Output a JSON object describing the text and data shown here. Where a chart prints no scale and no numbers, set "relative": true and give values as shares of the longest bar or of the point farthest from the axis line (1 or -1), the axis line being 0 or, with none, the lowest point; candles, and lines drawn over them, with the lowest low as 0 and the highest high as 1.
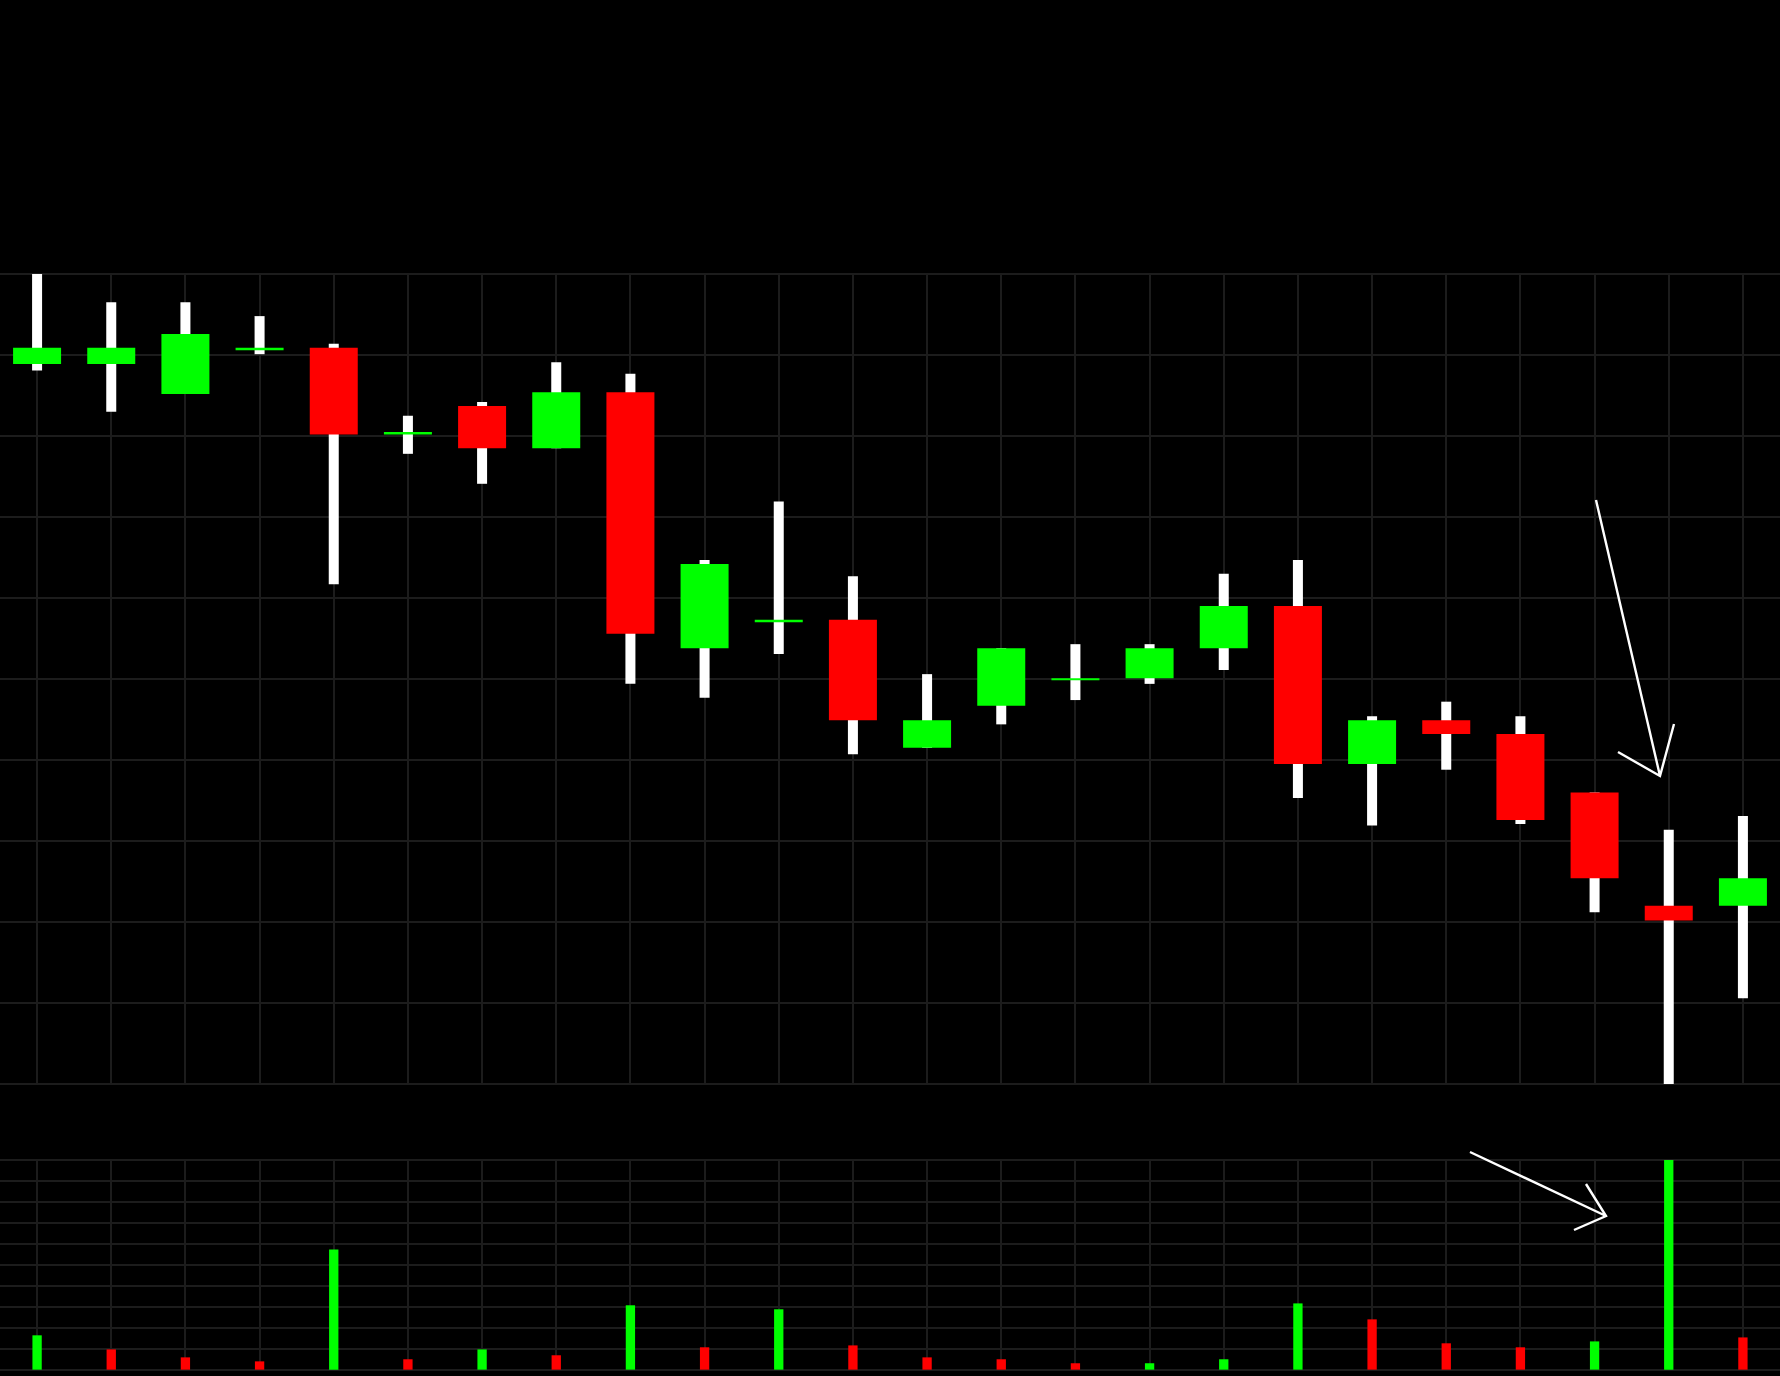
{
  "chart_data": [
    {
      "type": "candlestick",
      "relative": true,
      "grid": true,
      "categories": [
        null,
        null,
        null,
        null,
        null,
        null,
        null,
        null,
        null,
        null,
        null,
        null,
        null,
        null,
        null,
        null,
        null,
        null,
        null,
        null,
        null,
        null,
        null,
        null
      ],
      "ohlc": [
        [
          0.889,
          1,
          0.881,
          0.909
        ],
        [
          0.889,
          0.965,
          0.83,
          0.909
        ],
        [
          0.852,
          0.965,
          0.852,
          0.926
        ],
        [
          0.906,
          0.948,
          0.901,
          0.909
        ],
        [
          0.909,
          0.914,
          0.617,
          0.802
        ],
        [
          0.802,
          0.825,
          0.778,
          0.805
        ],
        [
          0.837,
          0.842,
          0.741,
          0.785
        ],
        [
          0.785,
          0.891,
          0.785,
          0.854
        ],
        [
          0.854,
          0.877,
          0.494,
          0.556
        ],
        [
          0.538,
          0.647,
          0.477,
          0.642
        ],
        [
          0.57,
          0.719,
          0.531,
          0.573
        ],
        [
          0.573,
          0.627,
          0.407,
          0.449
        ],
        [
          0.415,
          0.506,
          0.415,
          0.449
        ],
        [
          0.467,
          0.538,
          0.444,
          0.538
        ],
        [
          0.499,
          0.543,
          0.474,
          0.501
        ],
        [
          0.501,
          0.543,
          0.494,
          0.538
        ],
        [
          0.538,
          0.63,
          0.511,
          0.59
        ],
        [
          0.59,
          0.647,
          0.353,
          0.395
        ],
        [
          0.395,
          0.454,
          0.319,
          0.449
        ],
        [
          0.449,
          0.472,
          0.388,
          0.432
        ],
        [
          0.432,
          0.454,
          0.321,
          0.326
        ],
        [
          0.36,
          0.36,
          0.212,
          0.254
        ],
        [
          0.22,
          0.314,
          0,
          0.202
        ],
        [
          0.22,
          0.331,
          0.106,
          0.254
        ]
      ],
      "colors": [
        "#00ff00",
        "#00ff00",
        "#00ff00",
        "#00ff00",
        "#ff0000",
        "#00ff00",
        "#ff0000",
        "#00ff00",
        "#ff0000",
        "#00ff00",
        "#00ff00",
        "#ff0000",
        "#00ff00",
        "#00ff00",
        "#00ff00",
        "#00ff00",
        "#00ff00",
        "#ff0000",
        "#00ff00",
        "#ff0000",
        "#ff0000",
        "#ff0000",
        "#ff0000",
        "#00ff00"
      ]
    },
    {
      "type": "bar",
      "relative": true,
      "grid": true,
      "categories": [
        null,
        null,
        null,
        null,
        null,
        null,
        null,
        null,
        null,
        null,
        null,
        null,
        null,
        null,
        null,
        null,
        null,
        null,
        null,
        null,
        null,
        null,
        null,
        null
      ],
      "values": [
        0.162,
        0.095,
        0.057,
        0.038,
        0.571,
        0.048,
        0.095,
        0.067,
        0.305,
        0.105,
        0.286,
        0.114,
        0.057,
        0.048,
        0.029,
        0.029,
        0.048,
        0.314,
        0.238,
        0.124,
        0.105,
        0.133,
        1,
        0.152
      ],
      "colors": [
        "#00ff00",
        "#ff0000",
        "#ff0000",
        "#ff0000",
        "#00ff00",
        "#ff0000",
        "#00ff00",
        "#ff0000",
        "#00ff00",
        "#ff0000",
        "#00ff00",
        "#ff0000",
        "#ff0000",
        "#ff0000",
        "#ff0000",
        "#00ff00",
        "#00ff00",
        "#00ff00",
        "#ff0000",
        "#ff0000",
        "#ff0000",
        "#00ff00",
        "#00ff00",
        "#ff0000"
      ]
    }
  ]
}
